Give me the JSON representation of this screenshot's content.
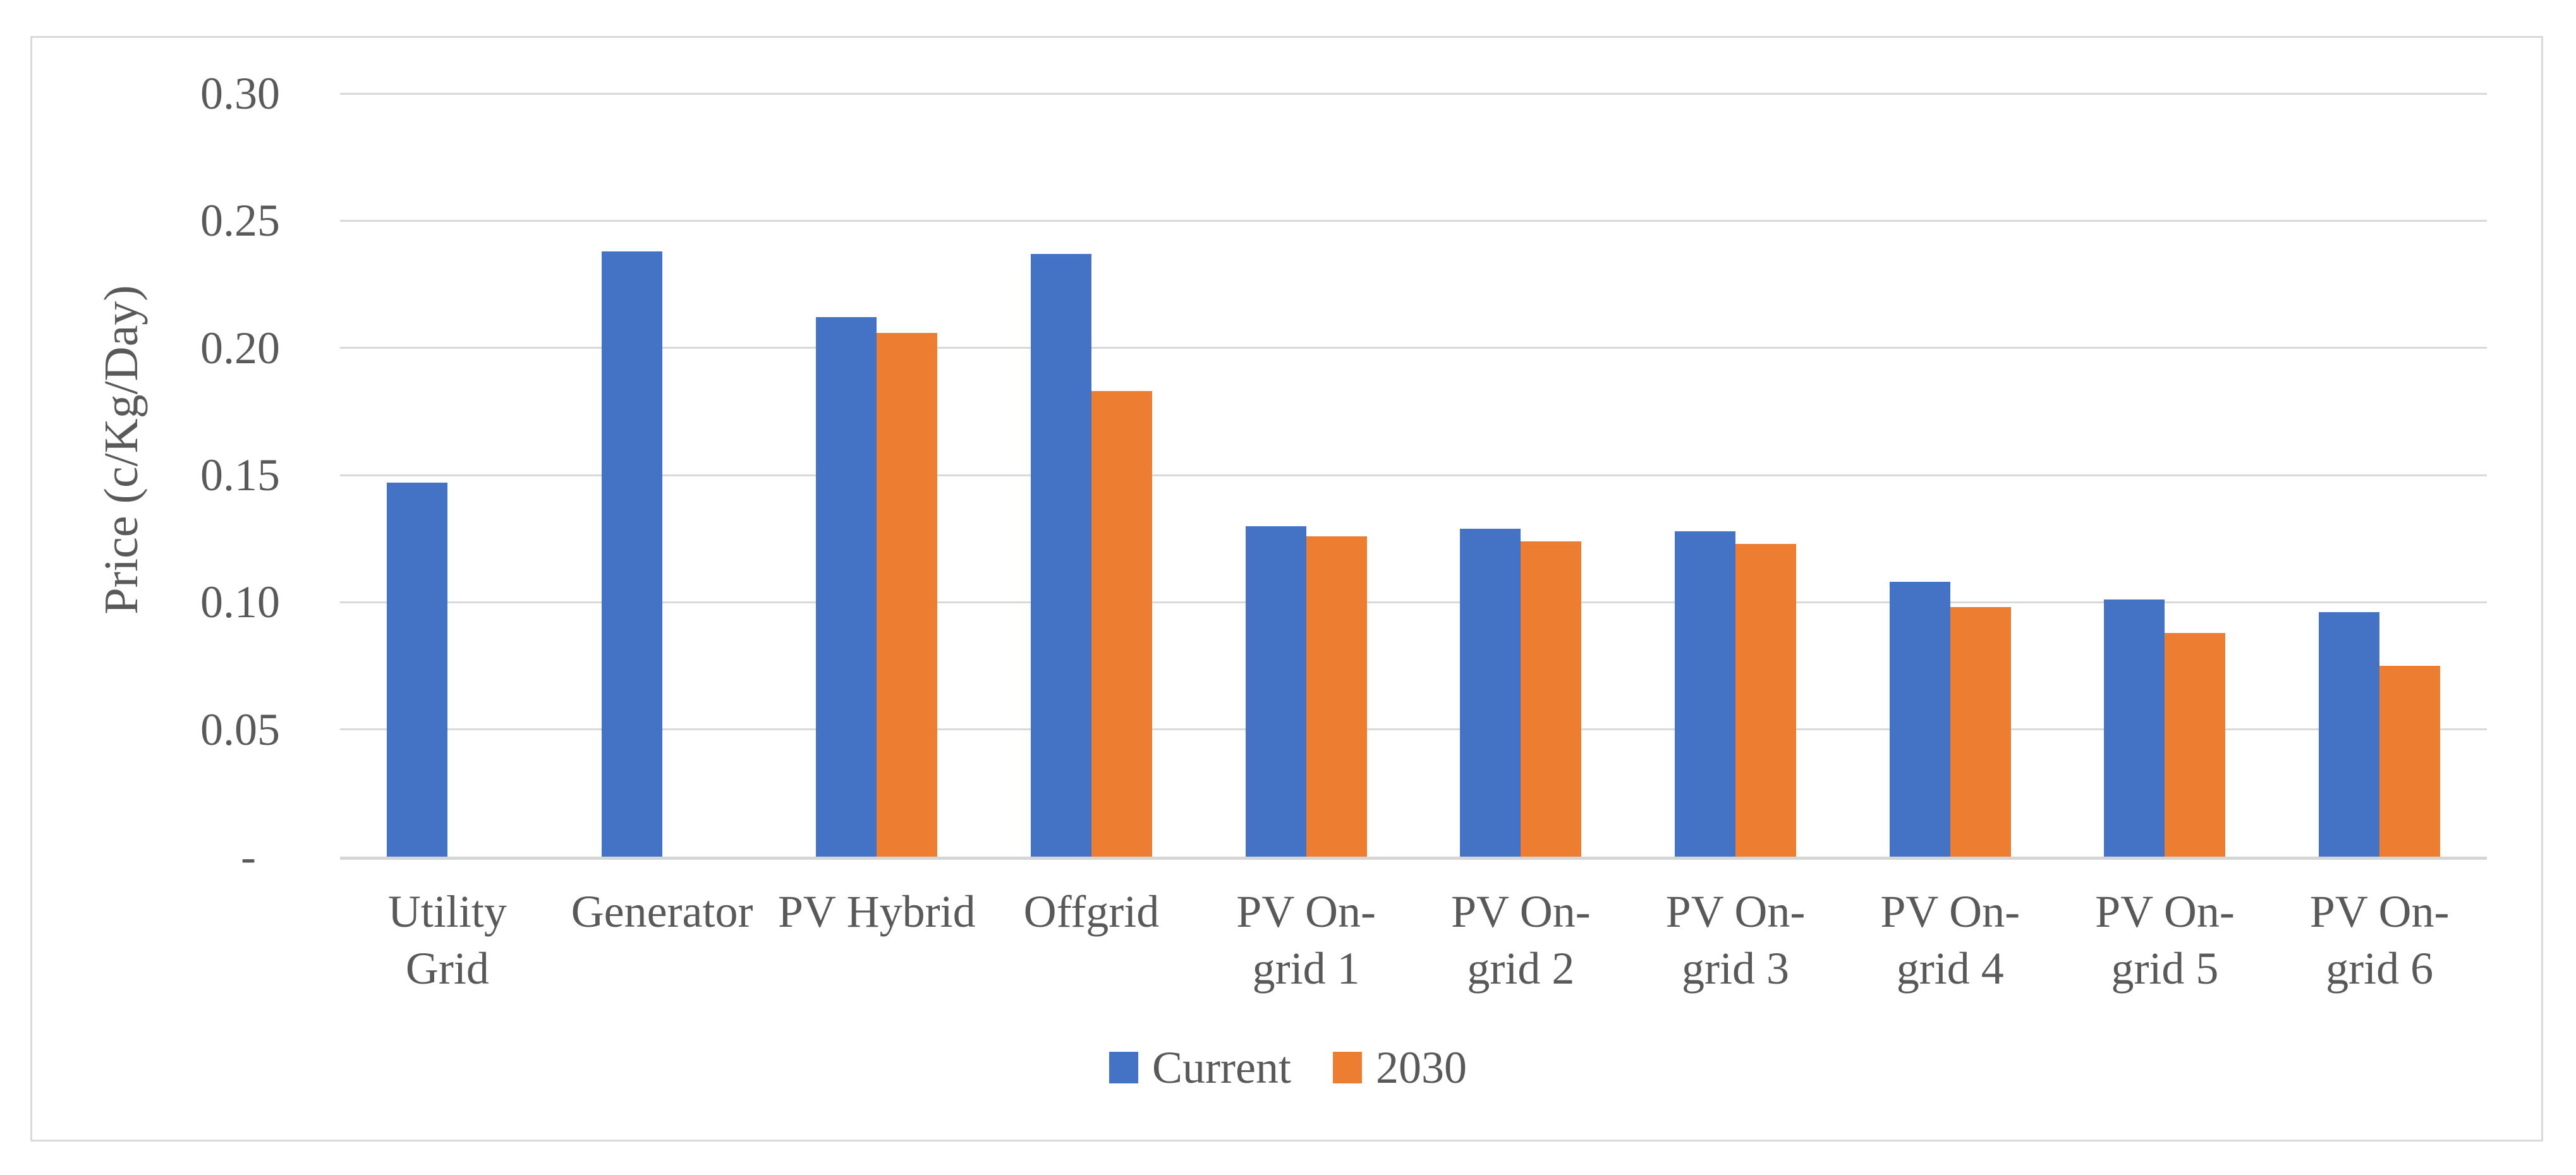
{
  "figure": {
    "background_color": "#FFFFFF",
    "border_color": "#D9D9D9",
    "text_color": "#595959",
    "gridline_color": "#D9D9D9",
    "axis_line_color": "#D5D5D5"
  },
  "chart_data": {
    "type": "bar",
    "title": "",
    "xlabel": "",
    "ylabel": "Price (c/Kg/Day)",
    "ylim": [
      0,
      0.3
    ],
    "ytick_values": [
      0.3,
      0.25,
      0.2,
      0.15,
      0.1,
      0.05,
      0
    ],
    "ytick_labels": [
      "0.30",
      "0.25",
      "0.20",
      "0.15",
      "0.10",
      "0.05",
      "-"
    ],
    "grid": true,
    "legend_position": "bottom-center",
    "categories": [
      "Utility Grid",
      "Generator",
      "PV Hybrid",
      "Offgrid",
      "PV On-grid 1",
      "PV On-grid 2",
      "PV On-grid 3",
      "PV On-grid 4",
      "PV On-grid 5",
      "PV On-grid 6"
    ],
    "category_label_lines": [
      [
        "Utility",
        "Grid"
      ],
      [
        "Generator"
      ],
      [
        "PV Hybrid"
      ],
      [
        "Offgrid"
      ],
      [
        "PV On-",
        "grid 1"
      ],
      [
        "PV On-",
        "grid 2"
      ],
      [
        "PV On-",
        "grid 3"
      ],
      [
        "PV On-",
        "grid 4"
      ],
      [
        "PV On-",
        "grid 5"
      ],
      [
        "PV On-",
        "grid 6"
      ]
    ],
    "series": [
      {
        "name": "Current",
        "color": "#4472C4",
        "values": [
          0.147,
          0.238,
          0.212,
          0.237,
          0.13,
          0.129,
          0.128,
          0.108,
          0.101,
          0.096
        ]
      },
      {
        "name": "2030",
        "color": "#ED7D31",
        "values": [
          null,
          null,
          0.206,
          0.183,
          0.126,
          0.124,
          0.123,
          0.098,
          0.088,
          0.075
        ]
      }
    ]
  },
  "legend": {
    "items": [
      {
        "label": "Current",
        "color": "#4472C4"
      },
      {
        "label": "2030",
        "color": "#ED7D31"
      }
    ]
  }
}
